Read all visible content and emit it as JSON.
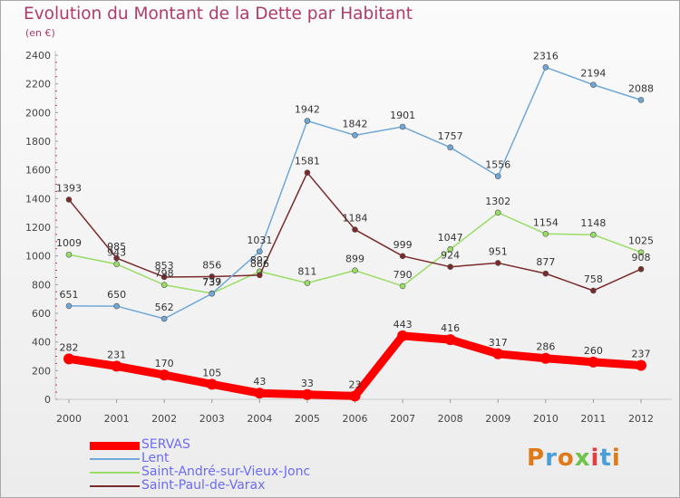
{
  "header": {
    "title": "Evolution du Montant de la Dette par Habitant",
    "subtitle": "(en €)"
  },
  "logo": {
    "text": "Proxiti",
    "letters": [
      "P",
      "r",
      "o",
      "x",
      "i",
      "t",
      "i"
    ]
  },
  "chart_data": {
    "type": "line",
    "title": "Evolution du Montant de la Dette par Habitant",
    "subtitle": "(en €)",
    "xlabel": "",
    "ylabel": "",
    "x": [
      "2000",
      "2001",
      "2002",
      "2003",
      "2004",
      "2005",
      "2006",
      "2007",
      "2008",
      "2009",
      "2010",
      "2011",
      "2012"
    ],
    "ylim": [
      0,
      2400
    ],
    "yticks": [
      0,
      200,
      400,
      600,
      800,
      1000,
      1200,
      1400,
      1600,
      1800,
      2000,
      2200,
      2400
    ],
    "grid": false,
    "legend": "bottom-left",
    "series": [
      {
        "name": "SERVAS",
        "color": "#ff0000",
        "values": [
          282,
          231,
          170,
          105,
          43,
          33,
          23,
          443,
          416,
          317,
          286,
          260,
          237
        ]
      },
      {
        "name": "Lent",
        "color": "#6fa8d8",
        "values": [
          651,
          650,
          562,
          737,
          1031,
          1942,
          1842,
          1901,
          1757,
          1556,
          2316,
          2194,
          2088
        ]
      },
      {
        "name": "Saint-André-sur-Vieux-Jonc",
        "color": "#99dd66",
        "values": [
          1009,
          943,
          798,
          739,
          892,
          811,
          899,
          790,
          1047,
          1302,
          1154,
          1148,
          1025
        ]
      },
      {
        "name": "Saint-Paul-de-Varax",
        "color": "#7a2a2a",
        "values": [
          1393,
          985,
          853,
          856,
          866,
          1581,
          1184,
          999,
          924,
          951,
          877,
          758,
          908
        ]
      }
    ]
  }
}
